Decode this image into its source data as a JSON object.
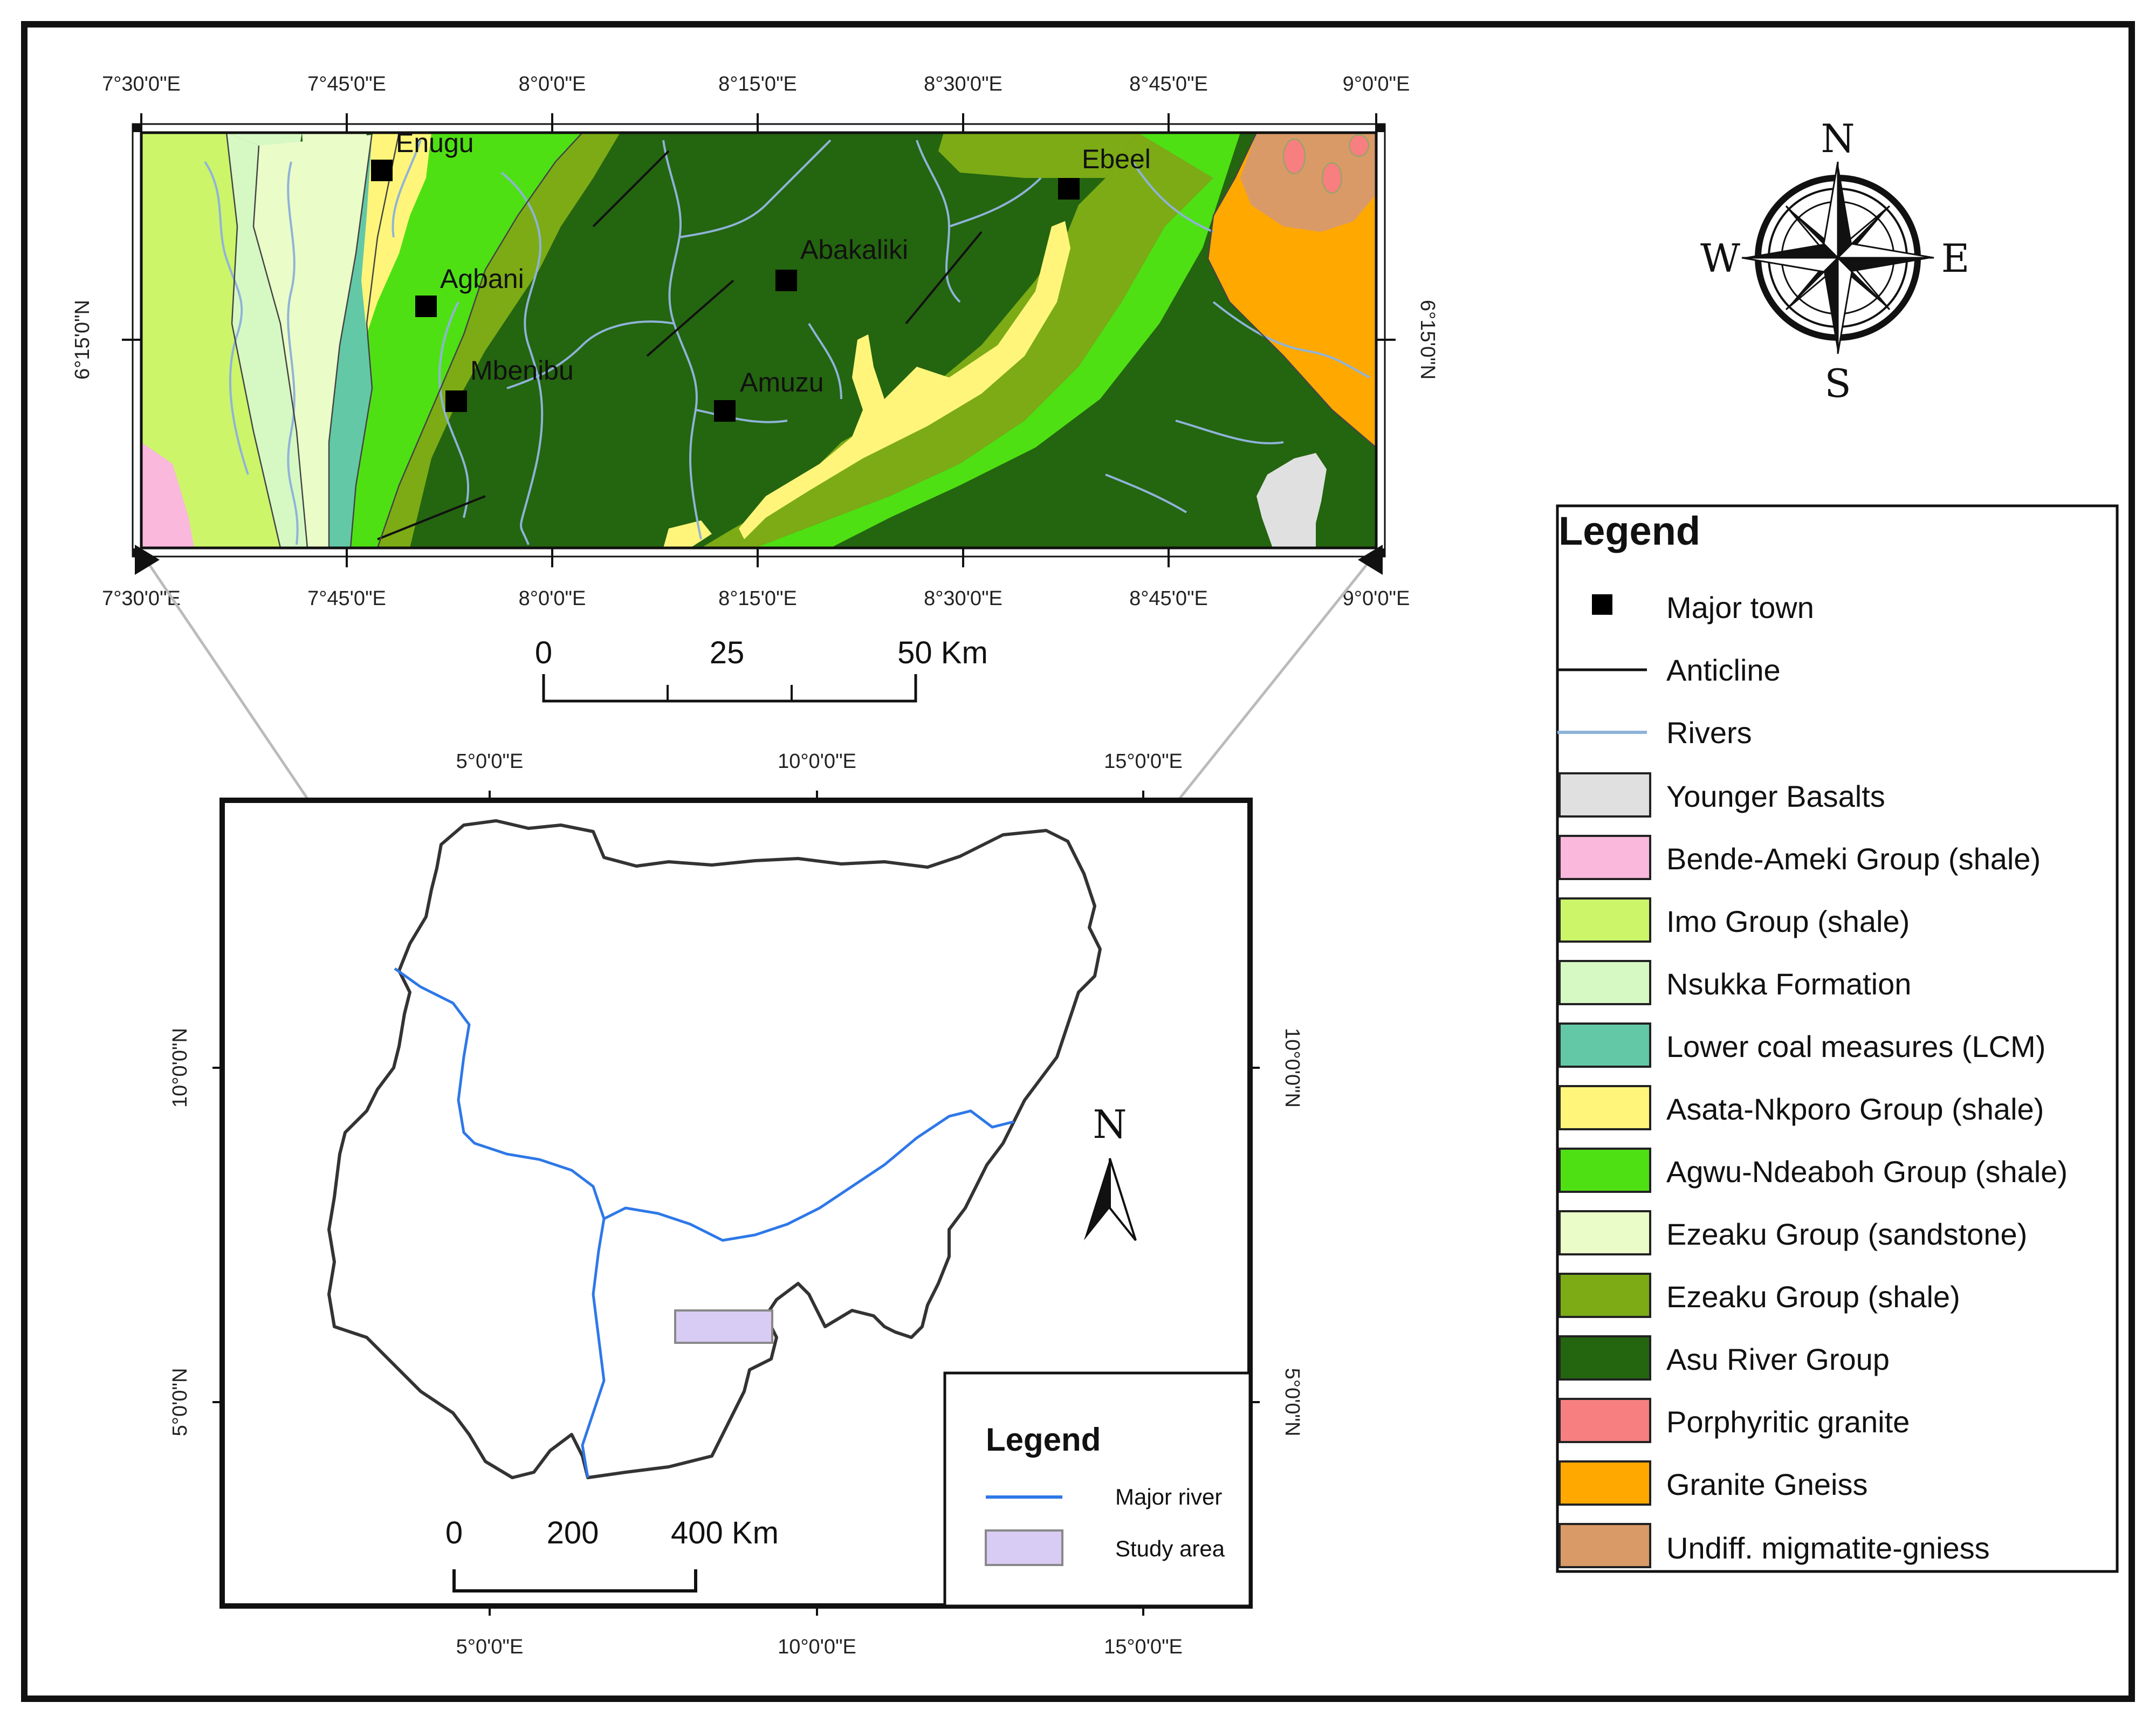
{
  "inset_map": {
    "top_ticks": [
      "7°30'0\"E",
      "7°45'0\"E",
      "8°0'0\"E",
      "8°15'0\"E",
      "8°30'0\"E",
      "8°45'0\"E",
      "9°0'0\"E"
    ],
    "bottom_ticks": [
      "7°30'0\"E",
      "7°45'0\"E",
      "8°0'0\"E",
      "8°15'0\"E",
      "8°30'0\"E",
      "8°45'0\"E",
      "9°0'0\"E"
    ],
    "left_tick": "6°15'0\"N",
    "right_tick": "6°15'0\"N",
    "towns": [
      "Enugu",
      "Agbani",
      "Mbenibu",
      "Abakaliki",
      "Amuzu",
      "Ebeel"
    ],
    "scale_bar": {
      "labels": [
        "0",
        "25",
        "50 Km"
      ]
    }
  },
  "compass_rose": {
    "n": "N",
    "s": "S",
    "e": "E",
    "w": "W"
  },
  "legend": {
    "title": "Legend",
    "items": [
      {
        "label": "Major town",
        "symbol": "square",
        "color": "#000000"
      },
      {
        "label": "Anticline",
        "symbol": "line",
        "color": "#111111"
      },
      {
        "label": "Rivers",
        "symbol": "line",
        "color": "#8fb3d9"
      },
      {
        "label": "Younger Basalts",
        "symbol": "box",
        "color": "#e0e0e0"
      },
      {
        "label": "Bende-Ameki Group (shale)",
        "symbol": "box",
        "color": "#f9b8dc"
      },
      {
        "label": "Imo Group (shale)",
        "symbol": "box",
        "color": "#ccf56a"
      },
      {
        "label": "Nsukka Formation",
        "symbol": "box",
        "color": "#d6f9c4"
      },
      {
        "label": "Lower coal measures (LCM)",
        "symbol": "box",
        "color": "#63c8a6"
      },
      {
        "label": "Asata-Nkporo Group (shale)",
        "symbol": "box",
        "color": "#fff57a"
      },
      {
        "label": "Agwu-Ndeaboh Group (shale)",
        "symbol": "box",
        "color": "#4fe014"
      },
      {
        "label": "Ezeaku Group (sandstone)",
        "symbol": "box",
        "color": "#eafcc8"
      },
      {
        "label": "Ezeaku Group (shale)",
        "symbol": "box",
        "color": "#7cab16"
      },
      {
        "label": "Asu River Group",
        "symbol": "box",
        "color": "#24650f"
      },
      {
        "label": "Porphyritic granite",
        "symbol": "box",
        "color": "#f77f7f"
      },
      {
        "label": "Granite Gneiss",
        "symbol": "box",
        "color": "#ffa800"
      },
      {
        "label": "Undiff. migmatite-gniess",
        "symbol": "box",
        "color": "#d99a68"
      }
    ]
  },
  "nigeria_map": {
    "top_ticks": [
      "5°0'0\"E",
      "10°0'0\"E",
      "15°0'0\"E"
    ],
    "bottom_ticks": [
      "5°0'0\"E",
      "10°0'0\"E",
      "15°0'0\"E"
    ],
    "left_ticks": [
      "10°0'0\"N",
      "5°0'0\"N"
    ],
    "right_ticks": [
      "10°0'0\"N",
      "5°0'0\"N"
    ],
    "north_arrow": "N",
    "scale_bar": {
      "labels": [
        "0",
        "200",
        "400 Km"
      ]
    },
    "legend": {
      "title": "Legend",
      "items": [
        {
          "label": "Major river",
          "symbol": "line",
          "color": "#2e78e8"
        },
        {
          "label": "Study area",
          "symbol": "box",
          "color": "#d8ccf4"
        }
      ]
    }
  }
}
